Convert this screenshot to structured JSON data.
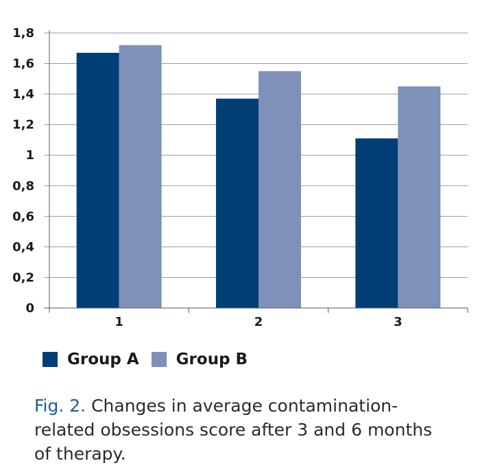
{
  "colors": {
    "group_a": "#003e76",
    "group_b": "#7f90b9",
    "gridline": "#9a9a9a",
    "axis": "#555555",
    "caption_prefix": "#1c5d94"
  },
  "chart_data": {
    "type": "bar",
    "categories": [
      "1",
      "2",
      "3"
    ],
    "series": [
      {
        "name": "Group A",
        "values": [
          1.67,
          1.37,
          1.11
        ]
      },
      {
        "name": "Group B",
        "values": [
          1.72,
          1.55,
          1.45
        ]
      }
    ],
    "ylim": [
      0,
      1.8
    ],
    "yticks": [
      0,
      0.2,
      0.4,
      0.6,
      0.8,
      1,
      1.2,
      1.4,
      1.6,
      1.8
    ],
    "ytick_labels": [
      "0",
      "0,2",
      "0,4",
      "0,6",
      "0,8",
      "1",
      "1,2",
      "1,4",
      "1,6",
      "1,8"
    ],
    "grid": true,
    "legend_position": "bottom-left"
  },
  "legend": {
    "group_a_label": "Group A",
    "group_b_label": "Group B"
  },
  "caption": {
    "prefix": "Fig. 2.",
    "text": "Changes in average contamination-related obsessions score after 3 and 6 months of therapy."
  }
}
